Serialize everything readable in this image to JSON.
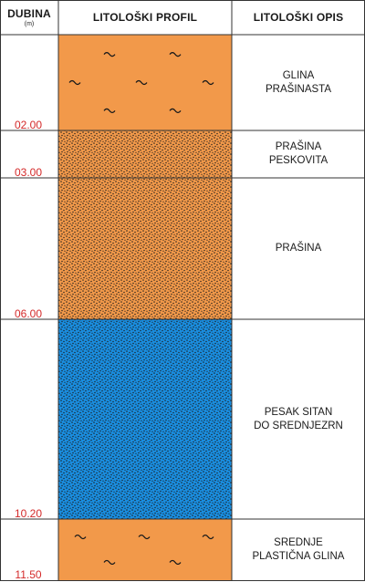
{
  "header": {
    "depth": "DUBINA",
    "depth_unit": "(m)",
    "profile": "LITOLOŠKI PROFIL",
    "description": "LITOLOŠKI OPIS"
  },
  "colors": {
    "clay": "#f2994a",
    "sand_silt": "#f2994a",
    "sand": "#1a8ee0",
    "dots": "#1a1a1a",
    "depth_text": "#d42a2a",
    "border": "#333333"
  },
  "layers": [
    {
      "bottom_depth": "02.00",
      "fill": "clay",
      "pattern": "wave",
      "description": [
        "GLINA",
        "PRAŠINASTA"
      ]
    },
    {
      "bottom_depth": "03.00",
      "fill": "sand_silt",
      "pattern": "dots",
      "description": [
        "PRAŠINA",
        "PESKOVITA"
      ]
    },
    {
      "bottom_depth": "06.00",
      "fill": "sand_silt",
      "pattern": "dots",
      "description": [
        "PRAŠINA"
      ]
    },
    {
      "bottom_depth": "10.20",
      "fill": "sand",
      "pattern": "dots",
      "description": [
        "PESAK SITAN",
        "DO SREDNJEZRN"
      ]
    },
    {
      "bottom_depth": "11.50",
      "fill": "clay",
      "pattern": "wave",
      "description": [
        "SREDNJE",
        "PLASTIČNA GLINA"
      ]
    }
  ]
}
